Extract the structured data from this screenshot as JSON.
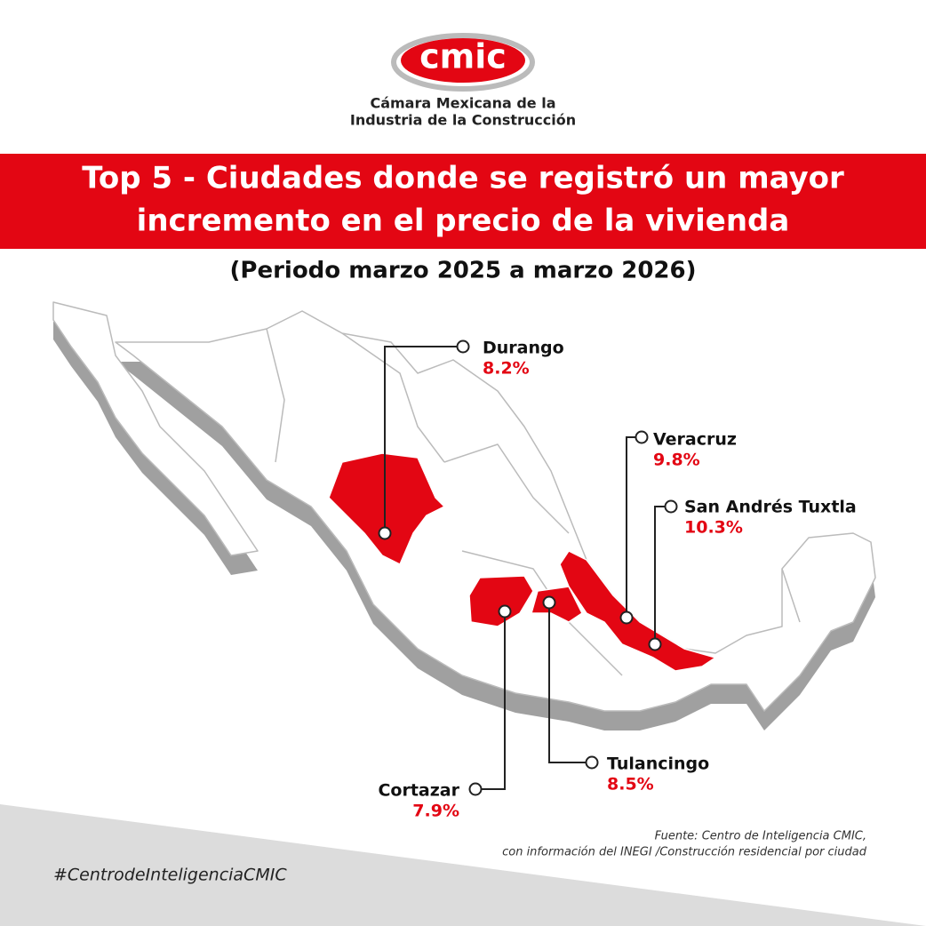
{
  "header": {
    "logo": "cmic",
    "org_line1": "Cámara Mexicana de la",
    "org_line2": "Industria de la Construcción"
  },
  "title": {
    "line1": "Top 5 - Ciudades donde se registró un mayor",
    "line2": "incremento en el precio de la vivienda"
  },
  "subtitle": "(Periodo marzo 2025 a marzo 2026)",
  "cities": [
    {
      "name": "Durango",
      "value": "8.2%"
    },
    {
      "name": "Veracruz",
      "value": "9.8%"
    },
    {
      "name": "San Andrés Tuxtla",
      "value": "10.3%"
    },
    {
      "name": "Cortazar",
      "value": "7.9%"
    },
    {
      "name": "Tulancingo",
      "value": "8.5%"
    }
  ],
  "source": {
    "line1": "Fuente: Centro de Inteligencia CMIC,",
    "line2": "con información del INEGI /Construcción residencial por ciudad"
  },
  "hashtag": "#CentrodeInteligenciaCMIC"
}
